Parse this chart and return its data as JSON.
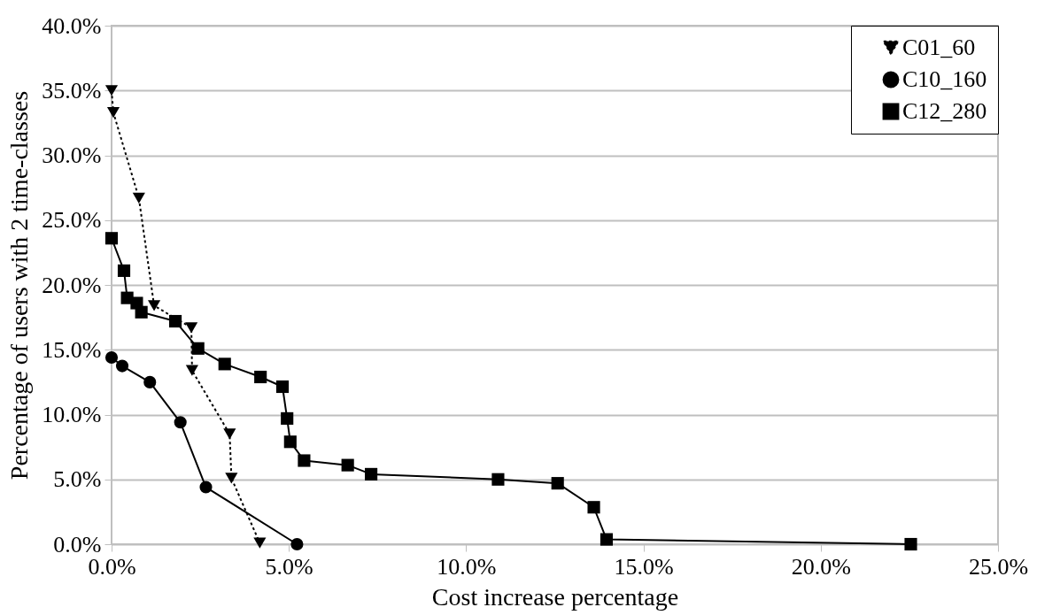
{
  "chart_data": {
    "type": "line",
    "xlabel": "Cost increase percentage",
    "ylabel": "Percentage of users with 2 time-classes",
    "xlim": [
      0,
      25
    ],
    "ylim": [
      0,
      40
    ],
    "xticks": [
      {
        "value": 0,
        "label": "0.0%"
      },
      {
        "value": 5,
        "label": "5.0%"
      },
      {
        "value": 10,
        "label": "10.0%"
      },
      {
        "value": 15,
        "label": "15.0%"
      },
      {
        "value": 20,
        "label": "20.0%"
      },
      {
        "value": 25,
        "label": "25.0%"
      }
    ],
    "yticks": [
      {
        "value": 0,
        "label": "0.0%"
      },
      {
        "value": 5,
        "label": "5.0%"
      },
      {
        "value": 10,
        "label": "10.0%"
      },
      {
        "value": 15,
        "label": "15.0%"
      },
      {
        "value": 20,
        "label": "20.0%"
      },
      {
        "value": 25,
        "label": "25.0%"
      },
      {
        "value": 30,
        "label": "30.0%"
      },
      {
        "value": 35,
        "label": "35.0%"
      },
      {
        "value": 40,
        "label": "40.0%"
      }
    ],
    "grid": "y",
    "legend": "top right",
    "series": [
      {
        "name": "C01_60",
        "color": "#000000",
        "marker": "triangle",
        "line_style": "dotted",
        "x": [
          0,
          0.05,
          0.77,
          1.2,
          2.25,
          2.27,
          3.33,
          3.38,
          4.18
        ],
        "values": [
          35.0,
          33.3,
          26.7,
          18.4,
          16.7,
          13.4,
          8.5,
          5.1,
          0.1
        ]
      },
      {
        "name": "C10_160",
        "color": "#000000",
        "marker": "circle",
        "line_style": "solid",
        "x": [
          0,
          0.3,
          1.08,
          1.94,
          2.66,
          5.23
        ],
        "values": [
          14.4,
          13.75,
          12.5,
          9.4,
          4.4,
          0
        ]
      },
      {
        "name": "C12_280",
        "color": "#000000",
        "marker": "square",
        "line_style": "solid",
        "x": [
          0,
          0.35,
          0.44,
          0.71,
          0.84,
          1.8,
          2.44,
          3.19,
          4.2,
          4.82,
          4.95,
          5.04,
          5.43,
          6.66,
          7.32,
          10.9,
          12.58,
          13.6,
          13.96,
          22.54
        ],
        "values": [
          23.6,
          21.1,
          19.0,
          18.6,
          17.9,
          17.2,
          15.1,
          13.9,
          12.9,
          12.15,
          9.7,
          7.9,
          6.45,
          6.1,
          5.4,
          5.0,
          4.7,
          2.85,
          0.37,
          0
        ]
      }
    ]
  }
}
